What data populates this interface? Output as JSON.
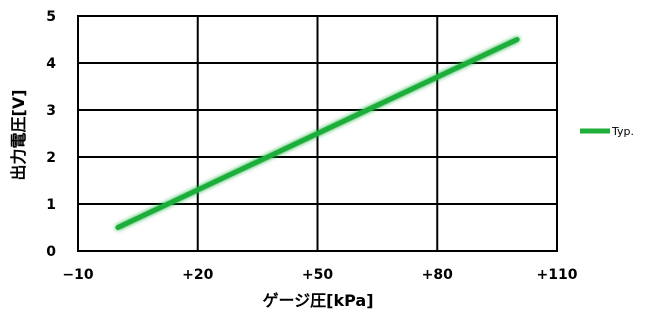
{
  "chart_data": {
    "type": "line",
    "xlabel": "ゲージ圧[kPa]",
    "ylabel": "出力電圧[V]",
    "xlim": [
      -10,
      110
    ],
    "ylim": [
      0,
      5
    ],
    "x_ticks": [
      -10,
      20,
      50,
      80,
      110
    ],
    "x_tick_labels": [
      "−10",
      "+20",
      "+50",
      "+80",
      "+110"
    ],
    "y_ticks": [
      0,
      1,
      2,
      3,
      4,
      5
    ],
    "y_tick_labels": [
      "0",
      "1",
      "2",
      "3",
      "4",
      "5"
    ],
    "grid": true,
    "legend_position": "right",
    "series": [
      {
        "name": "Typ.",
        "color": "#1fae3a",
        "x": [
          0,
          100
        ],
        "y": [
          0.5,
          4.5
        ]
      }
    ]
  }
}
